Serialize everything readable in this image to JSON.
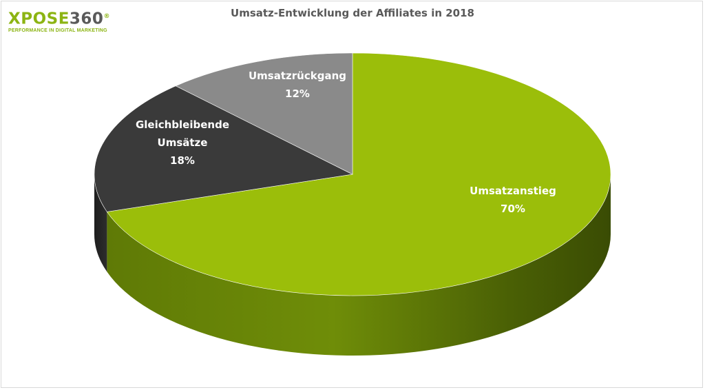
{
  "logo": {
    "xpose": "XPOSE",
    "num": "360",
    "reg": "®",
    "tagline": "PERFORMANCE IN DIGITAL MARKETING",
    "colors": {
      "xpose": "#8cb413",
      "num": "#5a5a5a"
    }
  },
  "chart_data": {
    "type": "pie",
    "title": "Umsatz-Entwicklung der Affiliates in 2018",
    "slices": [
      {
        "label": "Umsatzanstieg",
        "value": 70,
        "value_label": "70%",
        "color": "#9bbe0a",
        "side_color": "#5a7406"
      },
      {
        "label": "Gleichbleibende Umsätze",
        "label_lines": [
          "Gleichbleibende",
          "Umsätze"
        ],
        "value": 18,
        "value_label": "18%",
        "color": "#3a3a3a",
        "side_color": "#222222"
      },
      {
        "label": "Umsatzrückgang",
        "value": 12,
        "value_label": "12%",
        "color": "#8a8a8a",
        "side_color": "#5e5e5e"
      }
    ],
    "legend": "none",
    "style": "3d"
  }
}
